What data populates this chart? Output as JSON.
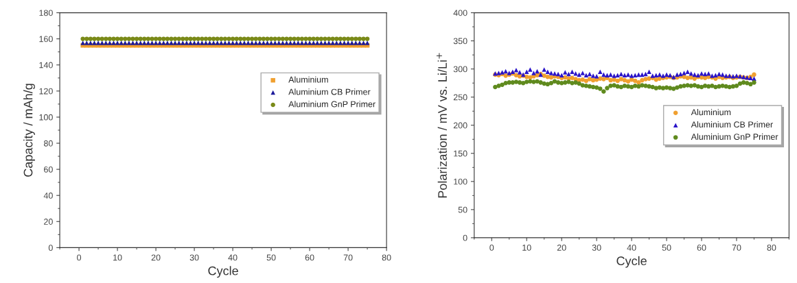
{
  "chart_data": [
    {
      "type": "scatter",
      "xlabel": "Cycle",
      "ylabel": "Capacity / mAh/g",
      "xlim": [
        -5,
        80
      ],
      "xticks": [
        0,
        10,
        20,
        30,
        40,
        50,
        60,
        70,
        80
      ],
      "ylim": [
        0,
        180
      ],
      "yticks": [
        0,
        20,
        40,
        60,
        80,
        100,
        120,
        140,
        160,
        180
      ],
      "grid": false,
      "legend": "right",
      "x": [
        1,
        2,
        3,
        4,
        5,
        6,
        7,
        8,
        9,
        10,
        11,
        12,
        13,
        14,
        15,
        16,
        17,
        18,
        19,
        20,
        21,
        22,
        23,
        24,
        25,
        26,
        27,
        28,
        29,
        30,
        31,
        32,
        33,
        34,
        35,
        36,
        37,
        38,
        39,
        40,
        41,
        42,
        43,
        44,
        45,
        46,
        47,
        48,
        49,
        50,
        51,
        52,
        53,
        54,
        55,
        56,
        57,
        58,
        59,
        60,
        61,
        62,
        63,
        64,
        65,
        66,
        67,
        68,
        69,
        70,
        71,
        72,
        73,
        74,
        75
      ],
      "series": [
        {
          "name": "Aluminium",
          "color": "#f0a030",
          "marker": "square",
          "values": [
            155,
            155,
            155,
            155,
            155,
            155,
            155,
            155,
            155,
            155,
            155,
            155,
            155,
            155,
            155,
            155,
            155,
            155,
            155,
            155,
            155,
            155,
            155,
            155,
            155,
            155,
            155,
            155,
            155,
            155,
            155,
            155,
            155,
            155,
            155,
            155,
            155,
            155,
            155,
            155,
            155,
            155,
            155,
            155,
            155,
            155,
            155,
            155,
            155,
            155,
            155,
            155,
            155,
            155,
            155,
            155,
            155,
            155,
            155,
            155,
            155,
            155,
            155,
            155,
            155,
            155,
            155,
            155,
            155,
            155,
            155,
            155,
            155,
            155,
            155
          ]
        },
        {
          "name": "Aluminium CB Primer",
          "color": "#1c1a9a",
          "marker": "triangle",
          "values": [
            157,
            157,
            157,
            157,
            157,
            157,
            157,
            157,
            157,
            157,
            157,
            157,
            157,
            157,
            157,
            157,
            157,
            157,
            157,
            157,
            157,
            157,
            157,
            157,
            157,
            157,
            157,
            157,
            157,
            157,
            157,
            157,
            157,
            157,
            157,
            157,
            157,
            157,
            157,
            157,
            157,
            157,
            157,
            157,
            157,
            157,
            157,
            157,
            157,
            157,
            157,
            157,
            157,
            157,
            157,
            157,
            157,
            157,
            157,
            157,
            157,
            157,
            157,
            157,
            157,
            157,
            157,
            157,
            157,
            157,
            157,
            157,
            157,
            157,
            157
          ]
        },
        {
          "name": "Aluminium GnP Primer",
          "color": "#7a8a18",
          "marker": "circle",
          "values": [
            160,
            160,
            160,
            160,
            160,
            160,
            160,
            160,
            160,
            160,
            160,
            160,
            160,
            160,
            160,
            160,
            160,
            160,
            160,
            160,
            160,
            160,
            160,
            160,
            160,
            160,
            160,
            160,
            160,
            160,
            160,
            160,
            160,
            160,
            160,
            160,
            160,
            160,
            160,
            160,
            160,
            160,
            160,
            160,
            160,
            160,
            160,
            160,
            160,
            160,
            160,
            160,
            160,
            160,
            160,
            160,
            160,
            160,
            160,
            160,
            160,
            160,
            160,
            160,
            160,
            160,
            160,
            160,
            160,
            160,
            160,
            160,
            160,
            160,
            160
          ]
        }
      ]
    },
    {
      "type": "scatter",
      "xlabel": "Cycle",
      "ylabel": "Polarization / mV vs. Li/Li$^{+}$",
      "xlim": [
        -5,
        85
      ],
      "xticks": [
        0,
        10,
        20,
        30,
        40,
        50,
        60,
        70,
        80
      ],
      "ylim": [
        0,
        400
      ],
      "yticks": [
        0,
        50,
        100,
        150,
        200,
        250,
        300,
        350,
        400
      ],
      "grid": false,
      "legend": "right",
      "x": [
        1,
        2,
        3,
        4,
        5,
        6,
        7,
        8,
        9,
        10,
        11,
        12,
        13,
        14,
        15,
        16,
        17,
        18,
        19,
        20,
        21,
        22,
        23,
        24,
        25,
        26,
        27,
        28,
        29,
        30,
        31,
        32,
        33,
        34,
        35,
        36,
        37,
        38,
        39,
        40,
        41,
        42,
        43,
        44,
        45,
        46,
        47,
        48,
        49,
        50,
        51,
        52,
        53,
        54,
        55,
        56,
        57,
        58,
        59,
        60,
        61,
        62,
        63,
        64,
        65,
        66,
        67,
        68,
        69,
        70,
        71,
        72,
        73,
        74,
        75
      ],
      "series": [
        {
          "name": "Aluminium",
          "color": "#f0a030",
          "marker": "circle",
          "values": [
            290,
            289,
            291,
            288,
            290,
            292,
            289,
            287,
            288,
            286,
            285,
            287,
            289,
            291,
            288,
            286,
            285,
            287,
            286,
            284,
            285,
            283,
            284,
            282,
            280,
            281,
            279,
            282,
            280,
            281,
            283,
            282,
            284,
            280,
            281,
            279,
            282,
            280,
            278,
            281,
            279,
            276,
            280,
            282,
            283,
            284,
            281,
            283,
            284,
            285,
            286,
            284,
            285,
            287,
            286,
            284,
            285,
            283,
            286,
            285,
            284,
            286,
            285,
            283,
            286,
            284,
            285,
            286,
            284,
            285,
            286,
            285,
            284,
            286,
            290
          ]
        },
        {
          "name": "Aluminium CB Primer",
          "color": "#2a14c8",
          "marker": "triangle",
          "values": [
            292,
            293,
            294,
            296,
            293,
            295,
            298,
            294,
            290,
            295,
            299,
            293,
            296,
            290,
            299,
            295,
            293,
            292,
            291,
            289,
            294,
            291,
            295,
            292,
            290,
            293,
            289,
            291,
            288,
            287,
            295,
            290,
            289,
            290,
            288,
            289,
            291,
            289,
            290,
            288,
            289,
            290,
            290,
            291,
            295,
            288,
            289,
            290,
            288,
            290,
            289,
            286,
            290,
            291,
            293,
            295,
            292,
            290,
            289,
            292,
            291,
            292,
            288,
            289,
            291,
            290,
            288,
            288,
            287,
            288,
            287,
            286,
            285,
            284,
            283
          ]
        },
        {
          "name": "Aluminium GnP Primer",
          "color": "#5f8a1e",
          "marker": "circle",
          "values": [
            268,
            270,
            272,
            275,
            276,
            276,
            277,
            276,
            275,
            277,
            278,
            277,
            278,
            276,
            274,
            273,
            275,
            278,
            276,
            275,
            276,
            277,
            275,
            276,
            274,
            271,
            270,
            269,
            268,
            267,
            265,
            260,
            266,
            270,
            271,
            269,
            268,
            270,
            269,
            268,
            270,
            269,
            271,
            270,
            269,
            268,
            266,
            267,
            266,
            267,
            266,
            265,
            267,
            269,
            270,
            271,
            270,
            271,
            269,
            268,
            270,
            269,
            270,
            268,
            269,
            270,
            269,
            268,
            269,
            270,
            274,
            276,
            275,
            273,
            276
          ]
        }
      ]
    }
  ]
}
